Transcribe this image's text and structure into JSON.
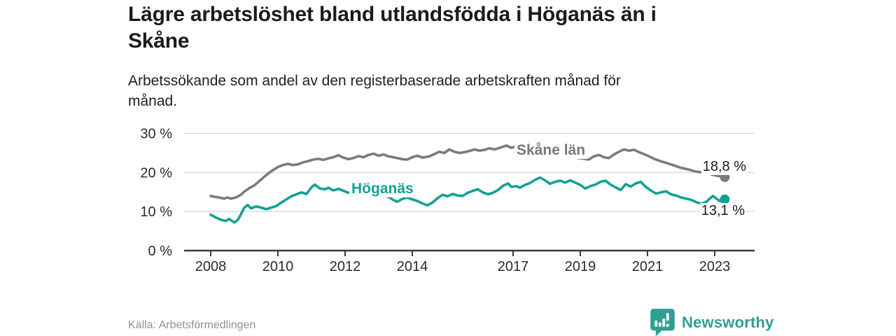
{
  "header": {
    "title_lines": [
      "Lägre arbetslöshet bland utlandsfödda i Höganäs än i",
      "Skåne"
    ],
    "subtitle_lines": [
      "Arbetssökande som andel av den registerbaserade arbetskraften månad för",
      "månad."
    ]
  },
  "footer": {
    "source": "Källa: Arbetsförmedlingen",
    "brand": "Newsworthy",
    "brand_icon": "newsworthy-speech-bubble-bars-icon",
    "brand_color": "#2f9e93"
  },
  "chart_data": {
    "type": "line",
    "unit": "%",
    "grid": true,
    "legend_position": "inline-labels",
    "x_axis": {
      "range": [
        2007.2,
        2024.2
      ],
      "ticks": [
        2008,
        2010,
        2012,
        2014,
        2017,
        2019,
        2021,
        2023
      ],
      "tick_labels": [
        "2008",
        "2010",
        "2012",
        "2014",
        "2017",
        "2019",
        "2021",
        "2023"
      ]
    },
    "y_axis": {
      "range": [
        0,
        30
      ],
      "ticks": [
        0,
        10,
        20,
        30
      ],
      "tick_labels": [
        "0 %",
        "10 %",
        "20 %",
        "30 %"
      ]
    },
    "colors": {
      "grid": "#d9d9d9",
      "axis": "#3a3a3a",
      "tick_text": "#2b2b2b"
    },
    "series": [
      {
        "name": "Skåne län",
        "color": "#7a7a7f",
        "end_value": 18.8,
        "end_label": "18,8 %",
        "points": [
          [
            2008.0,
            14.0
          ],
          [
            2008.1,
            13.8
          ],
          [
            2008.25,
            13.6
          ],
          [
            2008.4,
            13.3
          ],
          [
            2008.5,
            13.6
          ],
          [
            2008.6,
            13.3
          ],
          [
            2008.75,
            13.6
          ],
          [
            2008.9,
            14.3
          ],
          [
            2009.0,
            15.1
          ],
          [
            2009.15,
            16.0
          ],
          [
            2009.3,
            16.7
          ],
          [
            2009.5,
            18.2
          ],
          [
            2009.65,
            19.3
          ],
          [
            2009.8,
            20.3
          ],
          [
            2010.0,
            21.4
          ],
          [
            2010.15,
            21.9
          ],
          [
            2010.3,
            22.2
          ],
          [
            2010.45,
            21.9
          ],
          [
            2010.6,
            22.1
          ],
          [
            2010.75,
            22.6
          ],
          [
            2010.9,
            22.9
          ],
          [
            2011.05,
            23.3
          ],
          [
            2011.2,
            23.5
          ],
          [
            2011.35,
            23.2
          ],
          [
            2011.5,
            23.6
          ],
          [
            2011.65,
            23.9
          ],
          [
            2011.8,
            24.4
          ],
          [
            2011.95,
            23.8
          ],
          [
            2012.1,
            23.4
          ],
          [
            2012.25,
            23.7
          ],
          [
            2012.4,
            24.2
          ],
          [
            2012.55,
            23.9
          ],
          [
            2012.7,
            24.5
          ],
          [
            2012.85,
            24.8
          ],
          [
            2013.0,
            24.3
          ],
          [
            2013.15,
            24.6
          ],
          [
            2013.3,
            24.1
          ],
          [
            2013.5,
            23.8
          ],
          [
            2013.7,
            23.4
          ],
          [
            2013.85,
            23.3
          ],
          [
            2014.0,
            23.9
          ],
          [
            2014.15,
            24.3
          ],
          [
            2014.3,
            23.8
          ],
          [
            2014.5,
            24.1
          ],
          [
            2014.65,
            24.7
          ],
          [
            2014.8,
            25.3
          ],
          [
            2014.95,
            25.0
          ],
          [
            2015.1,
            25.9
          ],
          [
            2015.25,
            25.3
          ],
          [
            2015.4,
            25.0
          ],
          [
            2015.55,
            25.2
          ],
          [
            2015.7,
            25.5
          ],
          [
            2015.85,
            25.9
          ],
          [
            2016.0,
            25.6
          ],
          [
            2016.15,
            25.8
          ],
          [
            2016.3,
            26.2
          ],
          [
            2016.45,
            25.9
          ],
          [
            2016.6,
            26.3
          ],
          [
            2016.8,
            26.9
          ],
          [
            2016.95,
            26.3
          ],
          [
            2017.1,
            26.7
          ],
          [
            2017.25,
            26.4
          ],
          [
            2017.45,
            26.0
          ],
          [
            2017.65,
            25.7
          ],
          [
            2017.85,
            25.3
          ],
          [
            2018.05,
            25.0
          ],
          [
            2018.25,
            24.7
          ],
          [
            2018.45,
            24.4
          ],
          [
            2018.65,
            24.2
          ],
          [
            2018.85,
            23.8
          ],
          [
            2019.05,
            23.6
          ],
          [
            2019.25,
            23.3
          ],
          [
            2019.4,
            24.1
          ],
          [
            2019.55,
            24.5
          ],
          [
            2019.7,
            23.9
          ],
          [
            2019.85,
            23.7
          ],
          [
            2020.0,
            24.6
          ],
          [
            2020.15,
            25.3
          ],
          [
            2020.3,
            25.9
          ],
          [
            2020.45,
            25.6
          ],
          [
            2020.6,
            25.8
          ],
          [
            2020.75,
            25.2
          ],
          [
            2020.9,
            24.7
          ],
          [
            2021.05,
            24.1
          ],
          [
            2021.2,
            23.5
          ],
          [
            2021.35,
            23.0
          ],
          [
            2021.5,
            22.6
          ],
          [
            2021.65,
            22.2
          ],
          [
            2021.8,
            21.8
          ],
          [
            2021.95,
            21.3
          ],
          [
            2022.1,
            21.0
          ],
          [
            2022.25,
            20.7
          ],
          [
            2022.4,
            20.3
          ],
          [
            2022.55,
            20.1
          ],
          [
            2022.7,
            19.8
          ],
          [
            2022.8,
            20.1
          ],
          [
            2022.9,
            19.5
          ],
          [
            2023.0,
            19.3
          ],
          [
            2023.1,
            19.1
          ],
          [
            2023.2,
            19.0
          ],
          [
            2023.3,
            18.8
          ]
        ]
      },
      {
        "name": "Höganäs",
        "color": "#11a295",
        "end_value": 13.1,
        "end_label": "13,1 %",
        "points": [
          [
            2008.0,
            9.2
          ],
          [
            2008.15,
            8.5
          ],
          [
            2008.3,
            7.9
          ],
          [
            2008.45,
            7.6
          ],
          [
            2008.55,
            8.1
          ],
          [
            2008.7,
            7.2
          ],
          [
            2008.8,
            7.8
          ],
          [
            2008.9,
            9.3
          ],
          [
            2009.0,
            11.0
          ],
          [
            2009.1,
            11.7
          ],
          [
            2009.2,
            10.8
          ],
          [
            2009.35,
            11.3
          ],
          [
            2009.5,
            11.0
          ],
          [
            2009.65,
            10.6
          ],
          [
            2009.8,
            11.0
          ],
          [
            2009.95,
            11.4
          ],
          [
            2010.1,
            12.3
          ],
          [
            2010.25,
            13.1
          ],
          [
            2010.4,
            13.9
          ],
          [
            2010.55,
            14.4
          ],
          [
            2010.7,
            14.9
          ],
          [
            2010.85,
            14.5
          ],
          [
            2011.0,
            16.2
          ],
          [
            2011.1,
            16.9
          ],
          [
            2011.25,
            15.9
          ],
          [
            2011.4,
            15.7
          ],
          [
            2011.5,
            16.1
          ],
          [
            2011.65,
            15.4
          ],
          [
            2011.8,
            15.8
          ],
          [
            2011.95,
            15.3
          ],
          [
            2012.1,
            14.8
          ],
          [
            2012.25,
            15.0
          ],
          [
            2012.4,
            14.4
          ],
          [
            2012.55,
            14.7
          ],
          [
            2012.7,
            14.1
          ],
          [
            2012.85,
            14.4
          ],
          [
            2013.0,
            14.6
          ],
          [
            2013.15,
            14.1
          ],
          [
            2013.3,
            13.7
          ],
          [
            2013.45,
            12.9
          ],
          [
            2013.55,
            12.5
          ],
          [
            2013.7,
            13.2
          ],
          [
            2013.85,
            13.6
          ],
          [
            2014.0,
            13.1
          ],
          [
            2014.15,
            12.7
          ],
          [
            2014.3,
            12.1
          ],
          [
            2014.45,
            11.6
          ],
          [
            2014.6,
            12.3
          ],
          [
            2014.75,
            13.4
          ],
          [
            2014.9,
            14.3
          ],
          [
            2015.05,
            13.9
          ],
          [
            2015.2,
            14.5
          ],
          [
            2015.35,
            14.1
          ],
          [
            2015.5,
            14.0
          ],
          [
            2015.65,
            14.8
          ],
          [
            2015.8,
            15.3
          ],
          [
            2015.95,
            15.7
          ],
          [
            2016.1,
            14.9
          ],
          [
            2016.25,
            14.4
          ],
          [
            2016.4,
            14.8
          ],
          [
            2016.55,
            15.5
          ],
          [
            2016.7,
            16.6
          ],
          [
            2016.85,
            17.2
          ],
          [
            2016.95,
            16.3
          ],
          [
            2017.1,
            16.5
          ],
          [
            2017.2,
            16.1
          ],
          [
            2017.35,
            16.8
          ],
          [
            2017.5,
            17.3
          ],
          [
            2017.65,
            18.1
          ],
          [
            2017.8,
            18.7
          ],
          [
            2017.95,
            18.0
          ],
          [
            2018.1,
            17.1
          ],
          [
            2018.25,
            17.6
          ],
          [
            2018.4,
            17.9
          ],
          [
            2018.55,
            17.4
          ],
          [
            2018.7,
            18.0
          ],
          [
            2018.85,
            17.4
          ],
          [
            2019.0,
            16.8
          ],
          [
            2019.15,
            15.9
          ],
          [
            2019.3,
            16.5
          ],
          [
            2019.45,
            16.9
          ],
          [
            2019.6,
            17.6
          ],
          [
            2019.75,
            17.9
          ],
          [
            2019.9,
            16.9
          ],
          [
            2020.05,
            16.2
          ],
          [
            2020.2,
            15.5
          ],
          [
            2020.35,
            17.0
          ],
          [
            2020.5,
            16.4
          ],
          [
            2020.65,
            17.2
          ],
          [
            2020.8,
            17.6
          ],
          [
            2020.95,
            16.3
          ],
          [
            2021.1,
            15.4
          ],
          [
            2021.25,
            14.6
          ],
          [
            2021.4,
            14.9
          ],
          [
            2021.55,
            15.2
          ],
          [
            2021.7,
            14.4
          ],
          [
            2021.85,
            14.1
          ],
          [
            2022.0,
            13.6
          ],
          [
            2022.15,
            13.3
          ],
          [
            2022.3,
            13.0
          ],
          [
            2022.45,
            12.4
          ],
          [
            2022.6,
            12.0
          ],
          [
            2022.75,
            12.5
          ],
          [
            2022.85,
            13.3
          ],
          [
            2022.95,
            14.0
          ],
          [
            2023.05,
            13.3
          ],
          [
            2023.15,
            12.7
          ],
          [
            2023.25,
            12.9
          ],
          [
            2023.3,
            13.1
          ]
        ]
      }
    ]
  }
}
